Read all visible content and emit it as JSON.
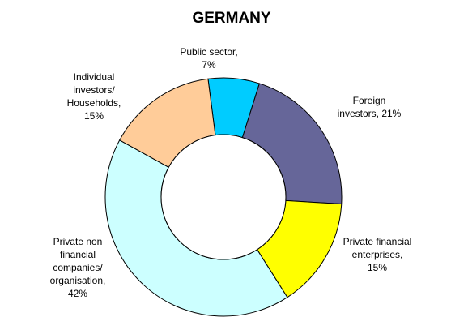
{
  "chart_data": {
    "type": "pie",
    "variant": "donut",
    "title": "GERMANY",
    "slices": [
      {
        "lines": [
          "Public sector,",
          "7%"
        ],
        "value": 7,
        "color": "#00ccff"
      },
      {
        "lines": [
          "Foreign",
          "investors, 21%"
        ],
        "value": 21,
        "color": "#666699"
      },
      {
        "lines": [
          "Private financial",
          "enterprises,",
          "15%"
        ],
        "value": 15,
        "color": "#ffff00"
      },
      {
        "lines": [
          "Private non",
          "financial",
          "companies/",
          "organisation,",
          "42%"
        ],
        "value": 42,
        "color": "#ccffff"
      },
      {
        "lines": [
          "Individual",
          "investors/",
          "Households,",
          "15%"
        ],
        "value": 15,
        "color": "#ffcc99"
      }
    ],
    "legend": "none"
  }
}
